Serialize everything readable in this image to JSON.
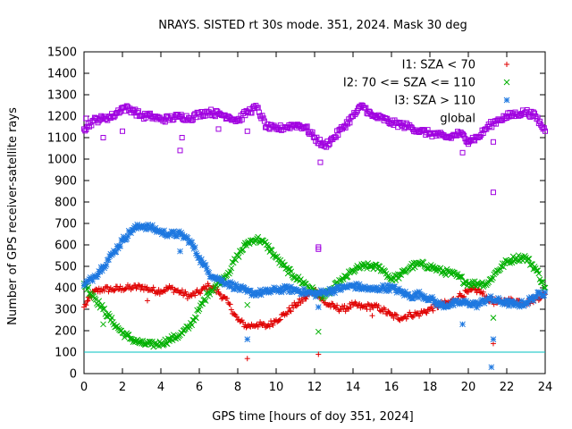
{
  "chart_data": {
    "type": "scatter",
    "title": "NRAYS. SISTED rt 30s mode. 351, 2024. Mask 30 deg",
    "xlabel": "GPS time [hours of doy 351, 2024]",
    "ylabel": "Number of GPS receiver-satellite rays",
    "xlim": [
      0,
      24
    ],
    "ylim": [
      0,
      1500
    ],
    "xticks": [
      0,
      2,
      4,
      6,
      8,
      10,
      12,
      14,
      16,
      18,
      20,
      22,
      24
    ],
    "yticks": [
      0,
      100,
      200,
      300,
      400,
      500,
      600,
      700,
      800,
      900,
      1000,
      1100,
      1200,
      1300,
      1400,
      1500
    ],
    "grid": false,
    "legend_position": "top-right",
    "threshold_line": {
      "y": 100,
      "color": "#00c0c0"
    },
    "series": [
      {
        "name": "I1: SZA < 70",
        "marker": "+",
        "color": "#e00000",
        "x": [
          0,
          0.5,
          1,
          1.5,
          2,
          2.5,
          3,
          3.5,
          4,
          4.5,
          5,
          5.5,
          6,
          6.5,
          7,
          7.5,
          8,
          8.5,
          9,
          9.5,
          10,
          10.5,
          11,
          11.5,
          12,
          12.5,
          13,
          13.5,
          14,
          14.5,
          15,
          15.5,
          16,
          16.5,
          17,
          17.5,
          18,
          18.5,
          19,
          19.5,
          20,
          20.5,
          21,
          21.5,
          22,
          22.5,
          23,
          23.5,
          24
        ],
        "values": [
          310,
          380,
          395,
          392,
          398,
          400,
          405,
          390,
          385,
          400,
          380,
          360,
          380,
          410,
          380,
          330,
          250,
          220,
          230,
          220,
          250,
          280,
          320,
          350,
          390,
          330,
          310,
          300,
          320,
          310,
          315,
          300,
          270,
          260,
          275,
          280,
          300,
          320,
          330,
          360,
          380,
          390,
          350,
          330,
          340,
          340,
          330,
          350,
          370
        ],
        "outliers": [
          [
            0.2,
            340
          ],
          [
            3.3,
            340
          ],
          [
            8.5,
            70
          ],
          [
            12.2,
            90
          ],
          [
            15,
            270
          ],
          [
            21.3,
            140
          ]
        ]
      },
      {
        "name": "I2: 70 <= SZA <= 110",
        "marker": "x",
        "color": "#00b000",
        "x": [
          0,
          0.5,
          1,
          1.5,
          2,
          2.5,
          3,
          3.5,
          4,
          4.5,
          5,
          5.5,
          6,
          6.5,
          7,
          7.5,
          8,
          8.5,
          9,
          9.5,
          10,
          10.5,
          11,
          11.5,
          12,
          12.5,
          13,
          13.5,
          14,
          14.5,
          15,
          15.5,
          16,
          16.5,
          17,
          17.5,
          18,
          18.5,
          19,
          19.5,
          20,
          20.5,
          21,
          21.5,
          22,
          22.5,
          23,
          23.5,
          24
        ],
        "values": [
          420,
          360,
          300,
          240,
          190,
          160,
          140,
          135,
          140,
          160,
          180,
          220,
          300,
          380,
          420,
          470,
          550,
          610,
          630,
          600,
          540,
          490,
          450,
          420,
          380,
          360,
          400,
          440,
          480,
          500,
          500,
          490,
          440,
          460,
          500,
          510,
          500,
          480,
          470,
          450,
          420,
          420,
          420,
          480,
          520,
          540,
          540,
          490,
          400
        ],
        "outliers": [
          [
            1,
            230
          ],
          [
            8.5,
            320
          ],
          [
            12.2,
            195
          ],
          [
            21.3,
            260
          ]
        ]
      },
      {
        "name": "I3: SZA > 110",
        "marker": "*",
        "color": "#1e78e0",
        "x": [
          0,
          0.5,
          1,
          1.5,
          2,
          2.5,
          3,
          3.5,
          4,
          4.5,
          5,
          5.5,
          6,
          6.5,
          7,
          7.5,
          8,
          8.5,
          9,
          9.5,
          10,
          10.5,
          11,
          11.5,
          12,
          12.5,
          13,
          13.5,
          14,
          14.5,
          15,
          15.5,
          16,
          16.5,
          17,
          17.5,
          18,
          18.5,
          19,
          19.5,
          20,
          20.5,
          21,
          21.5,
          22,
          22.5,
          23,
          23.5,
          24
        ],
        "values": [
          410,
          450,
          500,
          560,
          620,
          670,
          690,
          680,
          660,
          650,
          650,
          620,
          540,
          470,
          440,
          420,
          400,
          380,
          375,
          380,
          390,
          395,
          390,
          380,
          370,
          380,
          390,
          400,
          410,
          400,
          390,
          400,
          400,
          380,
          360,
          370,
          350,
          320,
          320,
          330,
          330,
          320,
          350,
          340,
          330,
          320,
          330,
          360,
          380
        ],
        "outliers": [
          [
            5,
            570
          ],
          [
            8.5,
            160
          ],
          [
            12.2,
            310
          ],
          [
            19.7,
            230
          ],
          [
            21.2,
            30
          ],
          [
            21.3,
            160
          ]
        ]
      },
      {
        "name": "global",
        "marker": "square",
        "color": "#a000e0",
        "x": [
          0,
          0.5,
          1,
          1.5,
          2,
          2.5,
          3,
          3.5,
          4,
          4.5,
          5,
          5.5,
          6,
          6.5,
          7,
          7.5,
          8,
          8.5,
          9,
          9.5,
          10,
          10.5,
          11,
          11.5,
          12,
          12.5,
          13,
          13.5,
          14,
          14.5,
          15,
          15.5,
          16,
          16.5,
          17,
          17.5,
          18,
          18.5,
          19,
          19.5,
          20,
          20.5,
          21,
          21.5,
          22,
          22.5,
          23,
          23.5,
          24
        ],
        "values": [
          1140,
          1180,
          1190,
          1200,
          1240,
          1230,
          1200,
          1200,
          1185,
          1190,
          1200,
          1190,
          1210,
          1220,
          1210,
          1200,
          1180,
          1220,
          1240,
          1150,
          1140,
          1150,
          1160,
          1150,
          1100,
          1060,
          1100,
          1150,
          1200,
          1250,
          1200,
          1190,
          1170,
          1160,
          1150,
          1130,
          1120,
          1110,
          1100,
          1120,
          1090,
          1100,
          1150,
          1180,
          1200,
          1210,
          1220,
          1200,
          1130
        ],
        "outliers": [
          [
            0.1,
            1190
          ],
          [
            1,
            1100
          ],
          [
            2,
            1130
          ],
          [
            5,
            1040
          ],
          [
            5.1,
            1100
          ],
          [
            7,
            1140
          ],
          [
            8.5,
            1130
          ],
          [
            12.2,
            580
          ],
          [
            12.2,
            590
          ],
          [
            12.3,
            985
          ],
          [
            19.7,
            1030
          ],
          [
            20,
            1070
          ],
          [
            21.3,
            845
          ],
          [
            21.3,
            1080
          ]
        ]
      }
    ]
  }
}
